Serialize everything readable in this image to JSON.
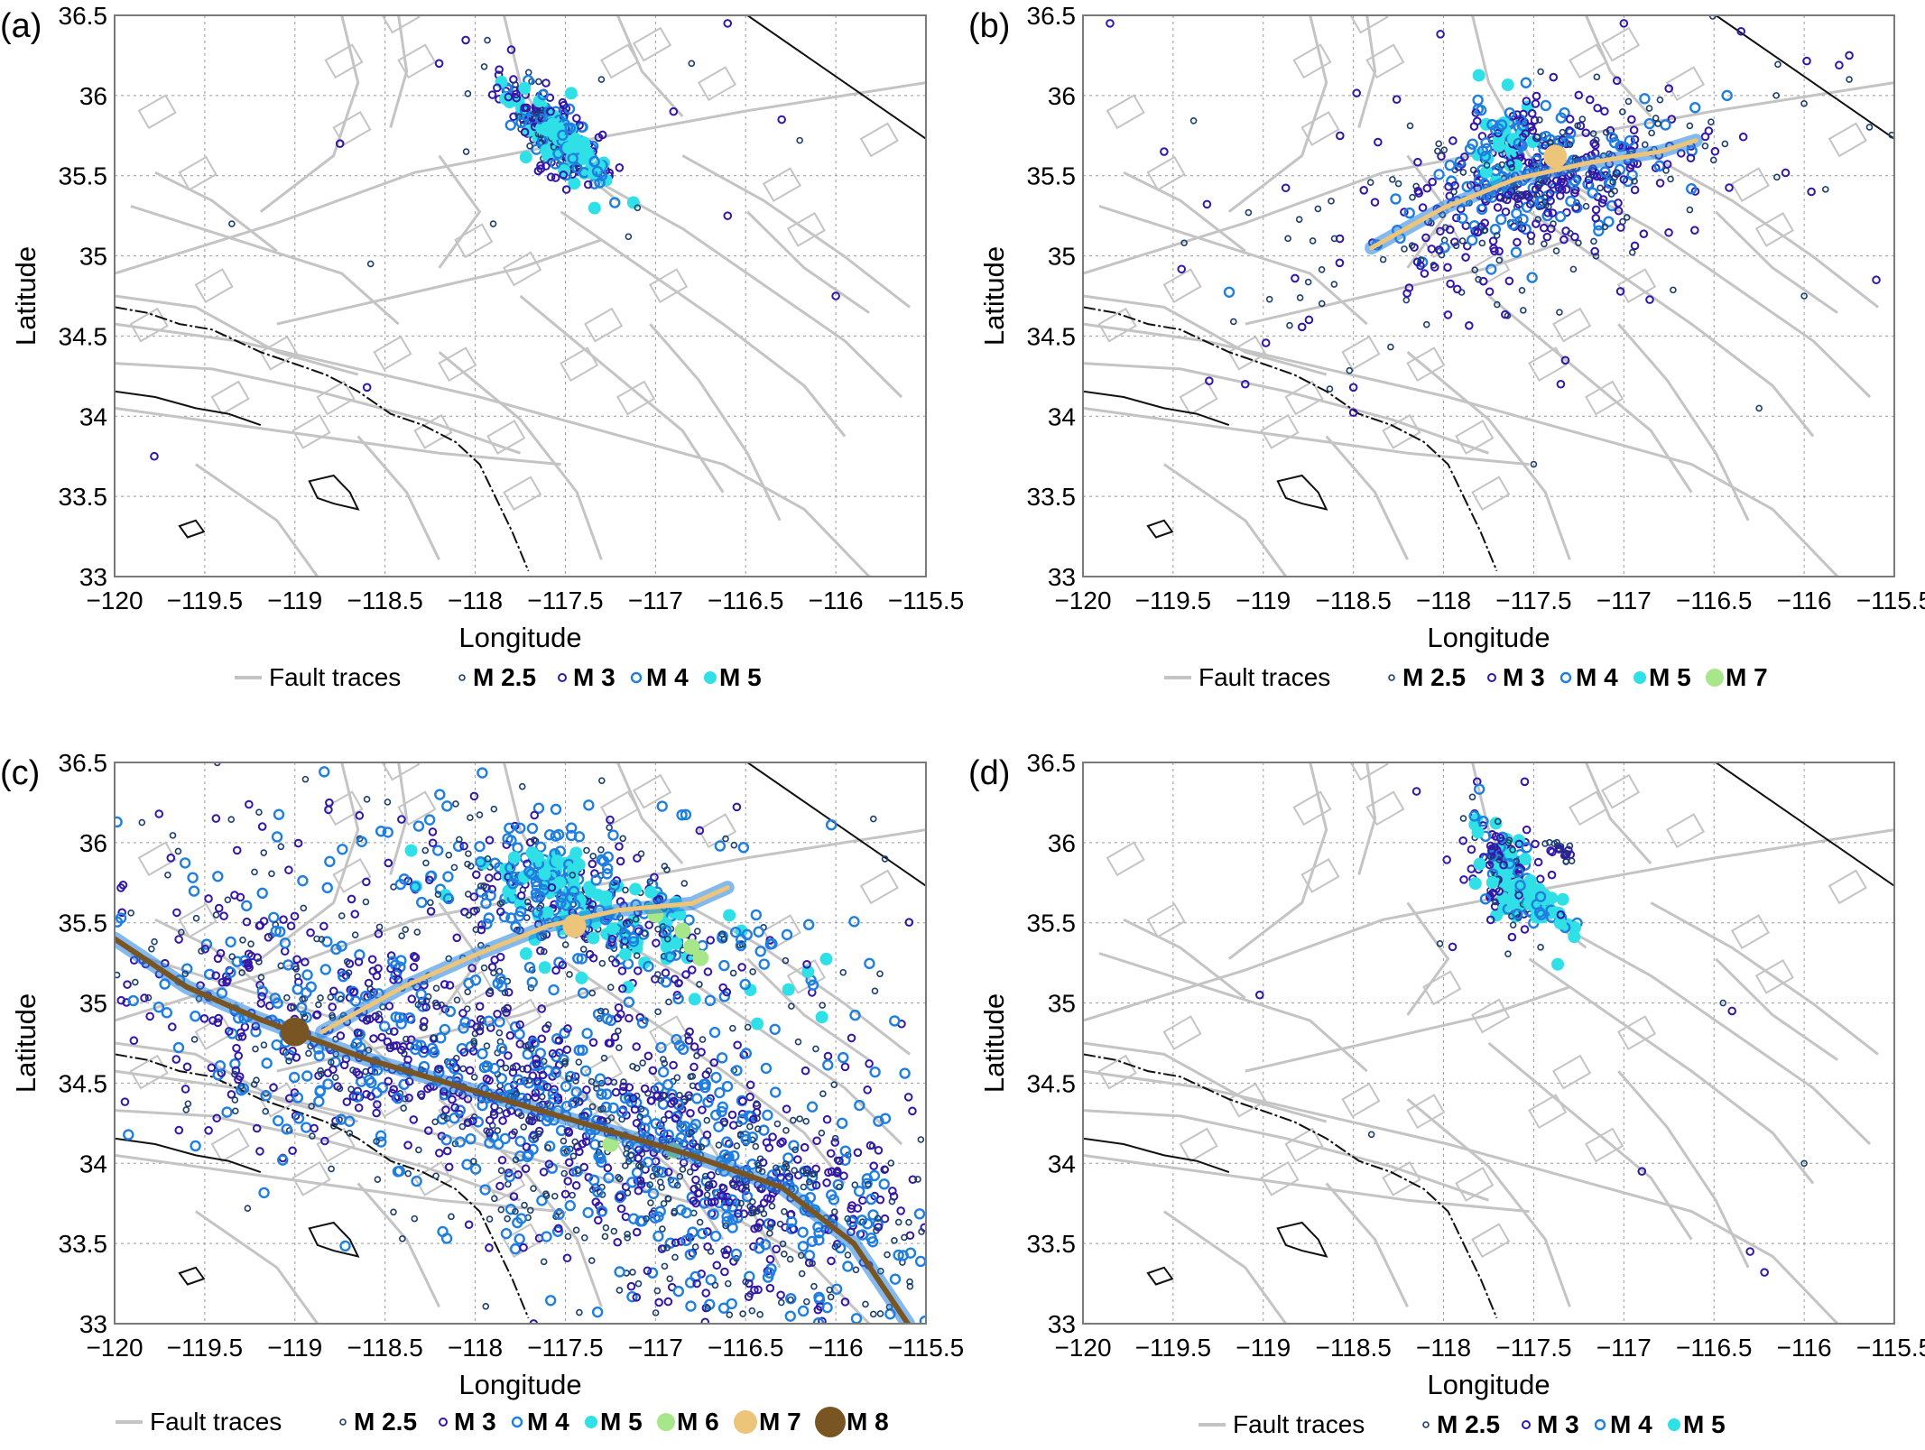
{
  "figure": {
    "colors": {
      "fault": "#c4c4c4",
      "coast": "#111111",
      "m25": "#1d3f6e",
      "m3": "#3417a8",
      "m4": "#1f7fe0",
      "m5": "#2fe0e6",
      "m6": "#a8e68a",
      "m7": "#ecc57a",
      "m8": "#7a5524",
      "grid": "#9a9a9a"
    }
  },
  "chart_data": [
    {
      "panel_label": "(a)",
      "type": "scatter",
      "xlabel": "Longitude",
      "ylabel": "Latitude",
      "xlim": [
        -120,
        -115.5
      ],
      "ylim": [
        33,
        36.5
      ],
      "xticks": [
        "−120",
        "−119.5",
        "−119",
        "−118.5",
        "−118",
        "−117.5",
        "−117",
        "−116.5",
        "−116",
        "−115.5"
      ],
      "yticks": [
        "33",
        "33.5",
        "34",
        "34.5",
        "35",
        "35.5",
        "36",
        "36.5"
      ],
      "grid": true,
      "legend_position": "bottom",
      "legend": [
        "Fault traces",
        "M 2.5",
        "M 3",
        "M 4",
        "M 5"
      ],
      "clusters": [
        {
          "center": [
            -117.6,
            35.8
          ],
          "spread": [
            0.13,
            0.12
          ],
          "count": 260,
          "mags": [
            "m25",
            "m3",
            "m3",
            "m4",
            "m5"
          ]
        },
        {
          "center": [
            -117.45,
            35.65
          ],
          "spread": [
            0.1,
            0.06
          ],
          "count": 60,
          "mags": [
            "m5",
            "m4"
          ]
        }
      ],
      "scattered": [
        [
          -118.2,
          36.2
        ],
        [
          -117.95,
          36.18
        ],
        [
          -117.3,
          36.1
        ],
        [
          -116.8,
          36.2
        ],
        [
          -116.6,
          36.45
        ],
        [
          -118.75,
          35.7
        ],
        [
          -117.2,
          35.55
        ],
        [
          -116.9,
          35.9
        ],
        [
          -116.3,
          35.85
        ],
        [
          -117.15,
          35.12
        ],
        [
          -119.35,
          35.2
        ],
        [
          -118.58,
          34.95
        ],
        [
          -116.6,
          35.25
        ],
        [
          -116.0,
          34.75
        ],
        [
          -118.6,
          34.18
        ],
        [
          -119.78,
          33.75
        ],
        [
          -116.2,
          35.72
        ],
        [
          -117.1,
          35.3
        ],
        [
          -118.05,
          35.65
        ],
        [
          -117.9,
          35.2
        ]
      ]
    },
    {
      "panel_label": "(b)",
      "type": "scatter",
      "xlabel": "Longitude",
      "ylabel": "Latitude",
      "xlim": [
        -120,
        -115.5
      ],
      "ylim": [
        33,
        36.5
      ],
      "xticks": [
        "−120",
        "−119.5",
        "−119",
        "−118.5",
        "−118",
        "−117.5",
        "−117",
        "−116.5",
        "−116",
        "−115.5"
      ],
      "yticks": [
        "33",
        "33.5",
        "34",
        "34.5",
        "35",
        "35.5",
        "36",
        "36.5"
      ],
      "grid": true,
      "legend_position": "bottom",
      "legend": [
        "Fault traces",
        "M 2.5",
        "M 3",
        "M 4",
        "M 5",
        "M 7"
      ],
      "rupture": {
        "color": "m7",
        "points": [
          [
            -118.4,
            35.05
          ],
          [
            -118.0,
            35.3
          ],
          [
            -117.6,
            35.48
          ],
          [
            -117.2,
            35.58
          ],
          [
            -116.8,
            35.65
          ],
          [
            -116.6,
            35.72
          ]
        ]
      },
      "mainshock": [
        {
          "lon": -117.38,
          "lat": 35.62,
          "mag": "m7"
        }
      ],
      "clusters": [
        {
          "center": [
            -117.5,
            35.45
          ],
          "spread": [
            0.42,
            0.2
          ],
          "count": 420,
          "mags": [
            "m25",
            "m3",
            "m3",
            "m4"
          ]
        },
        {
          "center": [
            -117.65,
            35.75
          ],
          "spread": [
            0.1,
            0.12
          ],
          "count": 80,
          "mags": [
            "m4",
            "m5",
            "m3"
          ]
        },
        {
          "center": [
            -117.5,
            35.3
          ],
          "spread": [
            0.9,
            0.45
          ],
          "count": 150,
          "mags": [
            "m25",
            "m3"
          ]
        }
      ],
      "scattered": [
        [
          -119.85,
          36.45
        ],
        [
          -119.55,
          35.65
        ],
        [
          -118.25,
          35.45
        ],
        [
          -115.75,
          36.25
        ],
        [
          -115.75,
          36.1
        ],
        [
          -115.6,
          34.85
        ],
        [
          -116.0,
          34.75
        ],
        [
          -116.25,
          34.05
        ],
        [
          -119.3,
          34.22
        ],
        [
          -117.35,
          34.2
        ],
        [
          -117.5,
          33.7
        ],
        [
          -118.5,
          34.18
        ],
        [
          -117.0,
          36.45
        ],
        [
          -116.35,
          36.4
        ],
        [
          -119.1,
          34.2
        ]
      ]
    },
    {
      "panel_label": "(c)",
      "type": "scatter",
      "xlabel": "Longitude",
      "ylabel": "Latitude",
      "xlim": [
        -120,
        -115.5
      ],
      "ylim": [
        33,
        36.5
      ],
      "xticks": [
        "−120",
        "−119.5",
        "−119",
        "−118.5",
        "−118",
        "−117.5",
        "−117",
        "−116.5",
        "−116",
        "−115.5"
      ],
      "yticks": [
        "33",
        "33.5",
        "34",
        "34.5",
        "35",
        "35.5",
        "36",
        "36.5"
      ],
      "grid": true,
      "legend_position": "bottom",
      "legend": [
        "Fault traces",
        "M 2.5",
        "M 3",
        "M 4",
        "M 5",
        "M 6",
        "M 7",
        "M 8"
      ],
      "rupture": {
        "color": "m8",
        "points": [
          [
            -120.0,
            35.4
          ],
          [
            -119.6,
            35.1
          ],
          [
            -119.2,
            34.9
          ],
          [
            -118.6,
            34.65
          ],
          [
            -118.0,
            34.45
          ],
          [
            -117.4,
            34.25
          ],
          [
            -116.8,
            34.05
          ],
          [
            -116.3,
            33.85
          ],
          [
            -115.9,
            33.5
          ],
          [
            -115.6,
            33.0
          ]
        ]
      },
      "rupture2": {
        "color": "m7",
        "points": [
          [
            -118.85,
            34.82
          ],
          [
            -118.4,
            35.1
          ],
          [
            -118.0,
            35.3
          ],
          [
            -117.6,
            35.48
          ],
          [
            -117.2,
            35.58
          ],
          [
            -116.8,
            35.62
          ],
          [
            -116.6,
            35.72
          ]
        ]
      },
      "mainshock": [
        {
          "lon": -119.0,
          "lat": 34.82,
          "mag": "m8"
        },
        {
          "lon": -117.45,
          "lat": 35.48,
          "mag": "m7"
        }
      ],
      "clusters": [
        {
          "center": [
            -118.0,
            34.55
          ],
          "spread": [
            1.2,
            0.35
          ],
          "count": 900,
          "mags": [
            "m25",
            "m3",
            "m3",
            "m4"
          ]
        },
        {
          "center": [
            -116.5,
            33.9
          ],
          "spread": [
            0.55,
            0.25
          ],
          "count": 350,
          "mags": [
            "m25",
            "m3",
            "m4"
          ]
        },
        {
          "center": [
            -117.3,
            35.55
          ],
          "spread": [
            0.45,
            0.18
          ],
          "count": 350,
          "mags": [
            "m25",
            "m3",
            "m4",
            "m5"
          ]
        },
        {
          "center": [
            -117.6,
            35.8
          ],
          "spread": [
            0.12,
            0.12
          ],
          "count": 80,
          "mags": [
            "m5",
            "m4"
          ]
        },
        {
          "center": [
            -117.6,
            34.8
          ],
          "spread": [
            1.3,
            0.9
          ],
          "count": 600,
          "mags": [
            "m25",
            "m3",
            "m4"
          ]
        },
        {
          "center": [
            -116.7,
            33.3
          ],
          "spread": [
            0.6,
            0.25
          ],
          "count": 150,
          "mags": [
            "m25",
            "m3",
            "m4"
          ]
        }
      ],
      "scattered": []
    },
    {
      "panel_label": "(d)",
      "type": "scatter",
      "xlabel": "Longitude",
      "ylabel": "Latitude",
      "xlim": [
        -120,
        -115.5
      ],
      "ylim": [
        33,
        36.5
      ],
      "xticks": [
        "−120",
        "−119.5",
        "−119",
        "−118.5",
        "−118",
        "−117.5",
        "−117",
        "−116.5",
        "−116",
        "−115.5"
      ],
      "yticks": [
        "33",
        "33.5",
        "34",
        "34.5",
        "35",
        "35.5",
        "36",
        "36.5"
      ],
      "grid": true,
      "legend_position": "bottom",
      "legend": [
        "Fault traces",
        "M 2.5",
        "M 3",
        "M 4",
        "M 5"
      ],
      "clusters": [
        {
          "center": [
            -117.65,
            35.82
          ],
          "spread": [
            0.1,
            0.15
          ],
          "count": 200,
          "mags": [
            "m25",
            "m3",
            "m3",
            "m4",
            "m5"
          ]
        },
        {
          "center": [
            -117.45,
            35.62
          ],
          "spread": [
            0.08,
            0.05
          ],
          "count": 50,
          "mags": [
            "m4",
            "m5"
          ]
        },
        {
          "center": [
            -117.35,
            35.95
          ],
          "spread": [
            0.06,
            0.03
          ],
          "count": 20,
          "mags": [
            "m3",
            "m25"
          ]
        }
      ],
      "scattered": [
        [
          -118.15,
          36.32
        ],
        [
          -117.3,
          35.98
        ],
        [
          -117.55,
          36.38
        ],
        [
          -117.95,
          35.35
        ],
        [
          -118.02,
          35.37
        ],
        [
          -119.02,
          35.05
        ],
        [
          -116.45,
          35.0
        ],
        [
          -116.4,
          34.95
        ],
        [
          -118.4,
          34.18
        ],
        [
          -116.9,
          33.95
        ],
        [
          -116.0,
          34.0
        ],
        [
          -116.3,
          33.45
        ],
        [
          -116.22,
          33.32
        ],
        [
          -117.35,
          35.55
        ]
      ]
    }
  ]
}
